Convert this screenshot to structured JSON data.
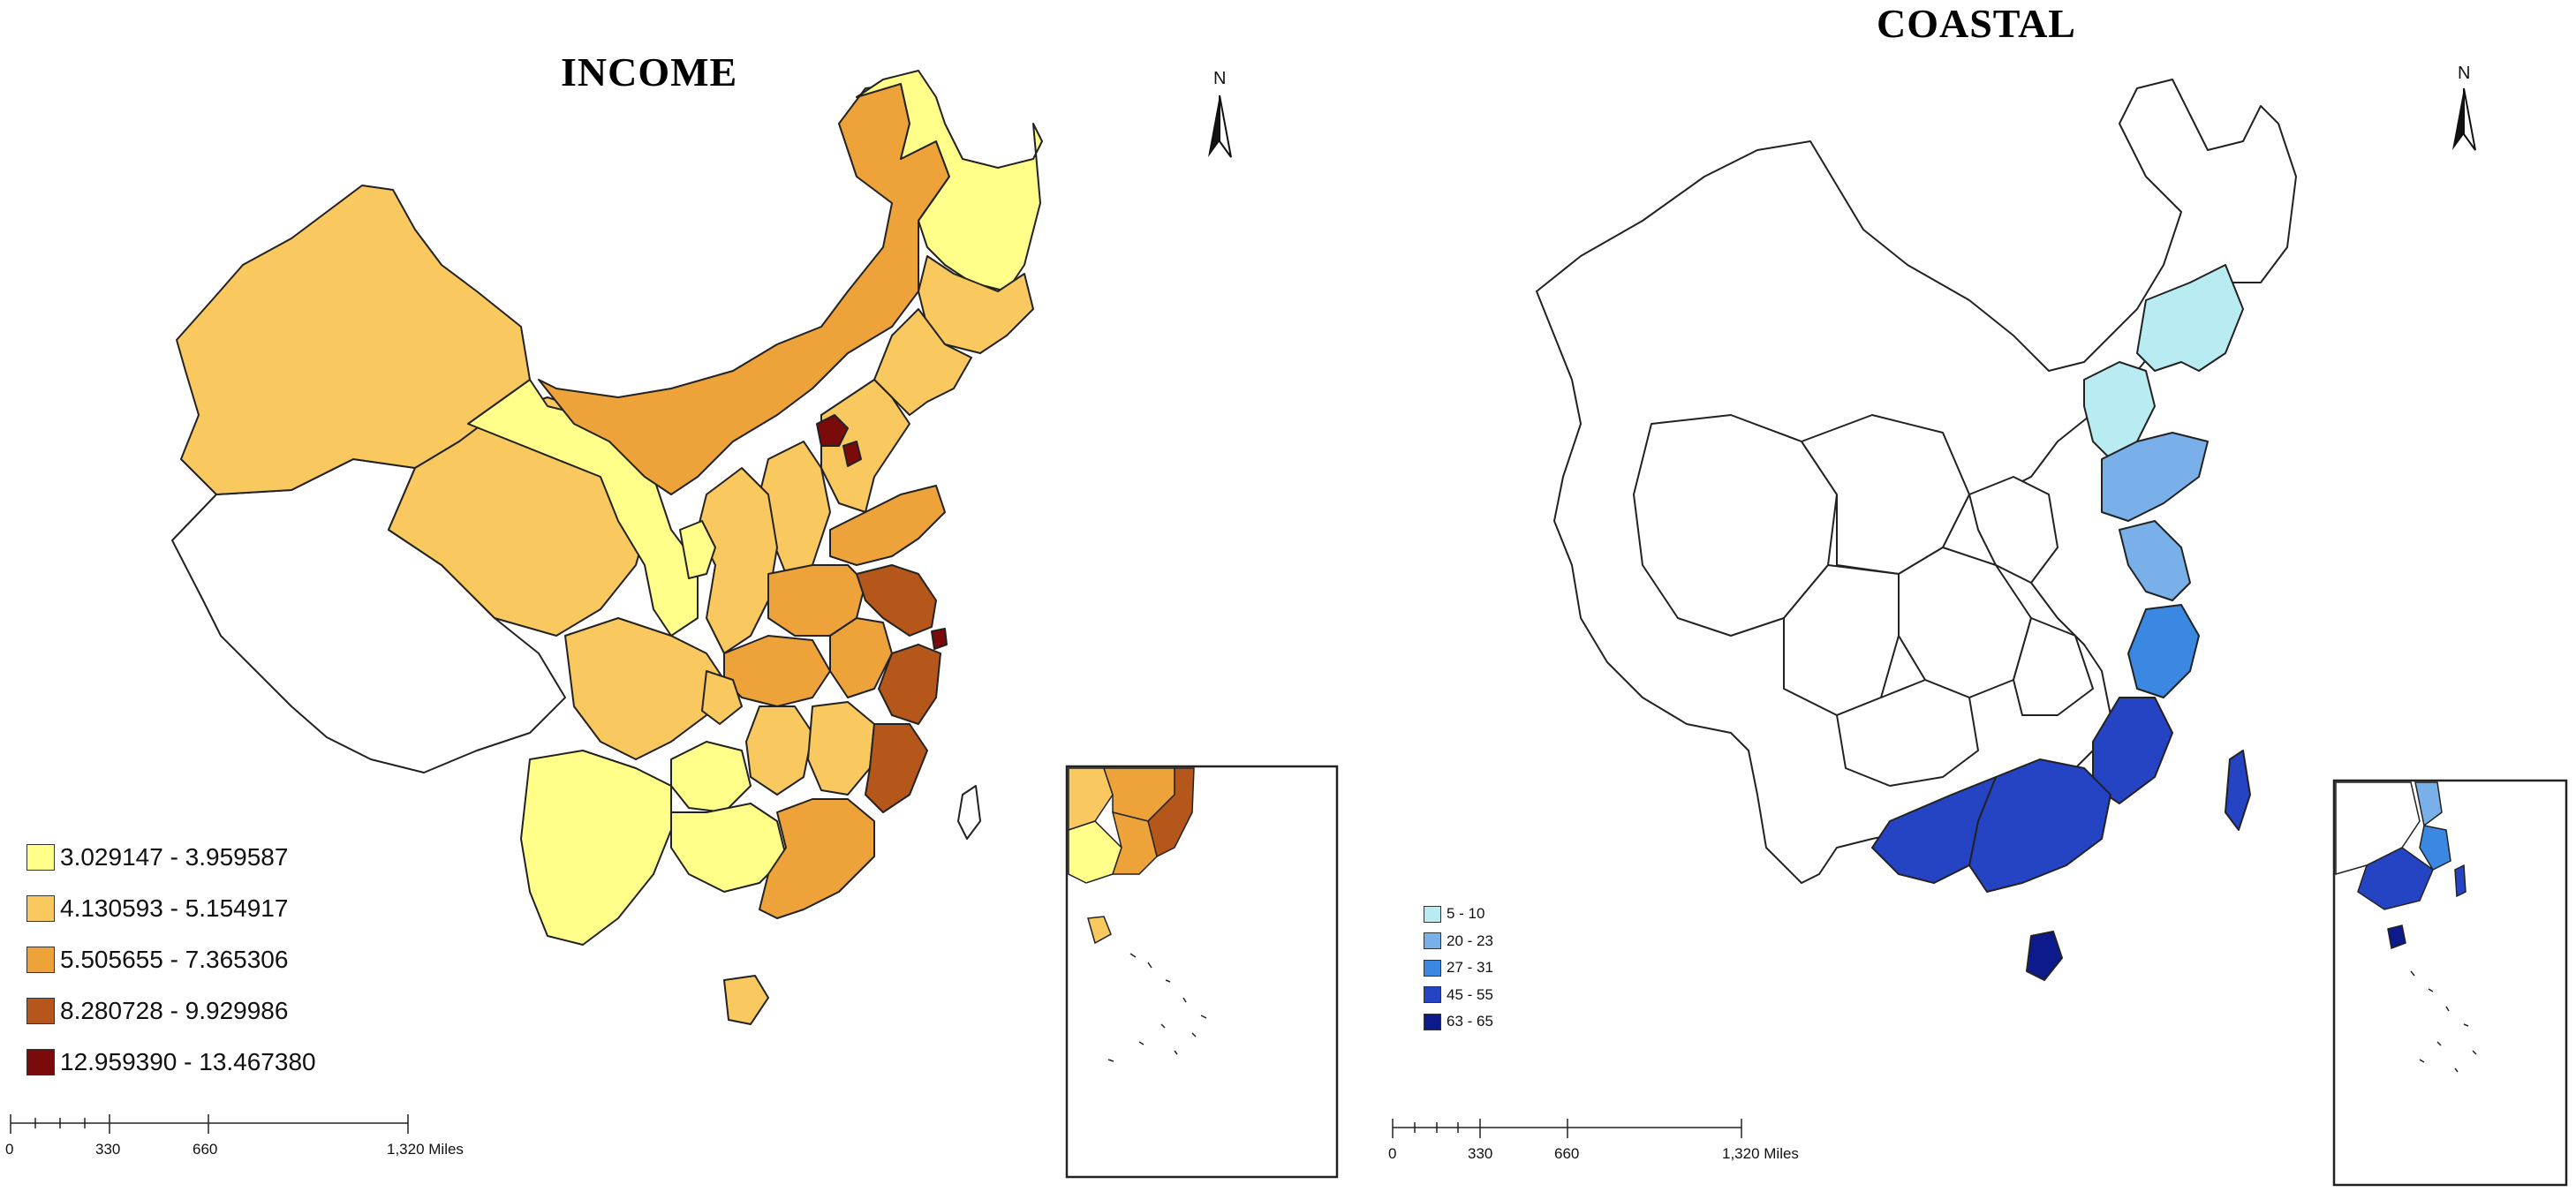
{
  "income_map": {
    "title": "INCOME",
    "legend": [
      {
        "label": "3.029147 - 3.959587",
        "color": "#ffff8a"
      },
      {
        "label": "4.130593 - 5.154917",
        "color": "#f9c85e"
      },
      {
        "label": "5.505655 - 7.365306",
        "color": "#eda33a"
      },
      {
        "label": "8.280728 - 9.929986",
        "color": "#b5561a"
      },
      {
        "label": "12.959390 - 13.467380",
        "color": "#7b0a0a"
      }
    ],
    "scale": {
      "ticks": [
        "0",
        "330",
        "660",
        "1,320 Miles"
      ]
    },
    "north": "N"
  },
  "coastal_map": {
    "title": "COASTAL",
    "legend": [
      {
        "label": "5 - 10",
        "color": "#b9ecf2"
      },
      {
        "label": "20 - 23",
        "color": "#7ab0ea"
      },
      {
        "label": "27 - 31",
        "color": "#3a88e2"
      },
      {
        "label": "45 - 55",
        "color": "#2444c4"
      },
      {
        "label": "63 - 65",
        "color": "#0c1a8c"
      }
    ],
    "scale": {
      "ticks": [
        "0",
        "330",
        "660",
        "1,320 Miles"
      ]
    },
    "north": "N"
  }
}
